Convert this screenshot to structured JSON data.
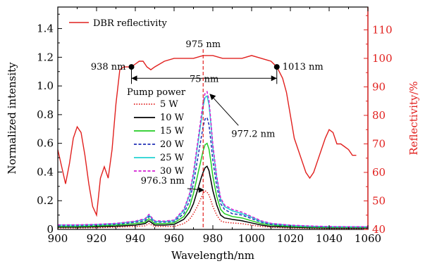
{
  "chart_data": {
    "type": "line",
    "xlabel": "Wavelength/nm",
    "ylabel": "Normalized intensity",
    "y2label": "Reflectivity/%",
    "xlim": [
      900,
      1060
    ],
    "ylim": [
      0,
      1.55
    ],
    "y2lim": [
      40,
      118
    ],
    "xticks": [
      900,
      920,
      940,
      960,
      980,
      1000,
      1020,
      1040,
      1060
    ],
    "yticks": [
      0,
      0.2,
      0.4,
      0.6,
      0.8,
      1.0,
      1.2,
      1.4
    ],
    "ytick_labels": [
      "0",
      "0.2",
      "0.4",
      "0.6",
      "0.8",
      "1.0",
      "1.2",
      "1.4"
    ],
    "y2ticks": [
      40,
      50,
      60,
      70,
      80,
      90,
      100,
      110
    ],
    "grid": false,
    "dbr_legend": {
      "label": "DBR reflectivity",
      "color": "#e1201e",
      "placement": "top-left"
    },
    "pump_legend": {
      "title": "Pump power",
      "placement": "center-left"
    },
    "reflectivity": {
      "name": "DBR reflectivity",
      "color": "#e1201e",
      "axis": "right",
      "x": [
        900,
        902,
        904,
        906,
        908,
        910,
        912,
        914,
        916,
        918,
        920,
        922,
        924,
        926,
        928,
        930,
        932,
        934,
        936,
        938,
        940,
        942,
        944,
        946,
        948,
        950,
        955,
        960,
        965,
        970,
        975,
        980,
        985,
        990,
        995,
        1000,
        1005,
        1010,
        1013,
        1016,
        1018,
        1020,
        1022,
        1024,
        1026,
        1028,
        1030,
        1032,
        1034,
        1036,
        1038,
        1040,
        1042,
        1044,
        1046,
        1048,
        1050,
        1052,
        1054
      ],
      "y": [
        68,
        62,
        56,
        63,
        72,
        76,
        74,
        66,
        56,
        48,
        45,
        58,
        62,
        58,
        68,
        84,
        96,
        97,
        97,
        97,
        98,
        99,
        99,
        97,
        96,
        97,
        99,
        100,
        100,
        100,
        101,
        101,
        100,
        100,
        100,
        101,
        100,
        99,
        97,
        93,
        88,
        80,
        72,
        68,
        64,
        60,
        58,
        60,
        64,
        68,
        72,
        75,
        74,
        70,
        70,
        69,
        68,
        66,
        66
      ]
    },
    "series": [
      {
        "name": "5 W",
        "color": "#e1201e",
        "dash": "dot",
        "peak": 0.27,
        "x": [
          900,
          910,
          920,
          930,
          935,
          940,
          945,
          947,
          950,
          955,
          960,
          965,
          968,
          970,
          972,
          974,
          975,
          976,
          977,
          978,
          979,
          980,
          982,
          984,
          986,
          990,
          995,
          1000,
          1005,
          1010,
          1020,
          1030,
          1040,
          1050,
          1060
        ],
        "y": [
          0.01,
          0.01,
          0.012,
          0.015,
          0.018,
          0.02,
          0.025,
          0.04,
          0.02,
          0.02,
          0.02,
          0.04,
          0.07,
          0.11,
          0.16,
          0.22,
          0.25,
          0.27,
          0.26,
          0.24,
          0.2,
          0.16,
          0.1,
          0.06,
          0.05,
          0.045,
          0.04,
          0.03,
          0.02,
          0.015,
          0.01,
          0.008,
          0.006,
          0.005,
          0.005
        ]
      },
      {
        "name": "10 W",
        "color": "#000000",
        "dash": "solid",
        "peak": 0.44,
        "x": [
          900,
          910,
          920,
          930,
          935,
          940,
          945,
          947,
          950,
          955,
          960,
          965,
          968,
          970,
          972,
          974,
          975,
          976,
          977,
          978,
          979,
          980,
          982,
          984,
          986,
          990,
          995,
          1000,
          1005,
          1010,
          1020,
          1030,
          1040,
          1050,
          1060
        ],
        "y": [
          0.015,
          0.015,
          0.018,
          0.022,
          0.026,
          0.03,
          0.04,
          0.06,
          0.03,
          0.03,
          0.035,
          0.07,
          0.12,
          0.18,
          0.27,
          0.36,
          0.4,
          0.43,
          0.44,
          0.41,
          0.34,
          0.27,
          0.17,
          0.1,
          0.08,
          0.07,
          0.06,
          0.045,
          0.03,
          0.02,
          0.015,
          0.012,
          0.01,
          0.01,
          0.01
        ]
      },
      {
        "name": "15 W",
        "color": "#22cc22",
        "dash": "solid",
        "peak": 0.6,
        "x": [
          900,
          910,
          920,
          930,
          935,
          940,
          945,
          947,
          950,
          955,
          960,
          965,
          968,
          970,
          972,
          974,
          975,
          976,
          977,
          978,
          979,
          980,
          982,
          984,
          986,
          990,
          995,
          1000,
          1005,
          1010,
          1020,
          1030,
          1040,
          1050,
          1060
        ],
        "y": [
          0.02,
          0.02,
          0.024,
          0.03,
          0.035,
          0.04,
          0.05,
          0.075,
          0.04,
          0.04,
          0.045,
          0.09,
          0.16,
          0.25,
          0.37,
          0.49,
          0.55,
          0.59,
          0.6,
          0.56,
          0.47,
          0.37,
          0.23,
          0.14,
          0.11,
          0.09,
          0.08,
          0.06,
          0.04,
          0.03,
          0.02,
          0.016,
          0.014,
          0.013,
          0.013
        ]
      },
      {
        "name": "20 W",
        "color": "#1f2fb5",
        "dash": "dash",
        "peak": 0.78,
        "x": [
          900,
          910,
          920,
          930,
          935,
          940,
          945,
          947,
          950,
          955,
          960,
          965,
          968,
          970,
          972,
          974,
          975,
          976,
          977,
          978,
          979,
          980,
          982,
          984,
          986,
          990,
          995,
          1000,
          1005,
          1010,
          1020,
          1030,
          1040,
          1050,
          1060
        ],
        "y": [
          0.025,
          0.025,
          0.03,
          0.036,
          0.042,
          0.05,
          0.06,
          0.09,
          0.05,
          0.05,
          0.055,
          0.11,
          0.2,
          0.32,
          0.48,
          0.64,
          0.72,
          0.77,
          0.78,
          0.73,
          0.61,
          0.48,
          0.3,
          0.18,
          0.14,
          0.11,
          0.1,
          0.075,
          0.05,
          0.035,
          0.025,
          0.02,
          0.017,
          0.016,
          0.016
        ]
      },
      {
        "name": "25 W",
        "color": "#22d3d3",
        "dash": "solid",
        "peak": 0.93,
        "x": [
          900,
          910,
          920,
          930,
          935,
          940,
          945,
          947,
          950,
          955,
          960,
          965,
          968,
          970,
          972,
          974,
          975,
          976,
          977,
          978,
          979,
          980,
          982,
          984,
          986,
          990,
          995,
          1000,
          1005,
          1010,
          1020,
          1030,
          1040,
          1050,
          1060
        ],
        "y": [
          0.03,
          0.03,
          0.034,
          0.04,
          0.048,
          0.055,
          0.07,
          0.1,
          0.055,
          0.055,
          0.06,
          0.13,
          0.24,
          0.38,
          0.57,
          0.76,
          0.86,
          0.92,
          0.93,
          0.87,
          0.73,
          0.57,
          0.36,
          0.21,
          0.16,
          0.13,
          0.11,
          0.085,
          0.055,
          0.04,
          0.028,
          0.022,
          0.019,
          0.018,
          0.018
        ]
      },
      {
        "name": "30 W",
        "color": "#d21ed2",
        "dash": "dash",
        "peak": 0.96,
        "x": [
          900,
          910,
          920,
          930,
          935,
          940,
          945,
          947,
          950,
          955,
          960,
          965,
          968,
          970,
          972,
          974,
          975,
          976,
          977,
          978,
          979,
          980,
          982,
          984,
          986,
          990,
          995,
          1000,
          1005,
          1010,
          1020,
          1030,
          1040,
          1050,
          1060
        ],
        "y": [
          0.032,
          0.032,
          0.036,
          0.042,
          0.05,
          0.058,
          0.075,
          0.105,
          0.06,
          0.058,
          0.065,
          0.14,
          0.25,
          0.4,
          0.59,
          0.79,
          0.89,
          0.95,
          0.96,
          0.9,
          0.75,
          0.59,
          0.37,
          0.22,
          0.17,
          0.14,
          0.12,
          0.09,
          0.06,
          0.042,
          0.03,
          0.024,
          0.02,
          0.019,
          0.019
        ]
      }
    ],
    "annotations": {
      "left_edge": {
        "text": "938 nm",
        "x": 938,
        "y_right": 97
      },
      "right_edge": {
        "text": "1013 nm",
        "x": 1013,
        "y_right": 97
      },
      "bandwidth": {
        "text": "75 nm",
        "x1": 938,
        "x2": 1013,
        "y_right": 93
      },
      "center": {
        "text": "975 nm",
        "x": 975
      },
      "peak_high": {
        "text": "977.2 nm",
        "x": 977.2,
        "y": 0.96
      },
      "peak_low": {
        "text": "976.3 nm",
        "x": 976.3,
        "y": 0.27
      }
    }
  }
}
